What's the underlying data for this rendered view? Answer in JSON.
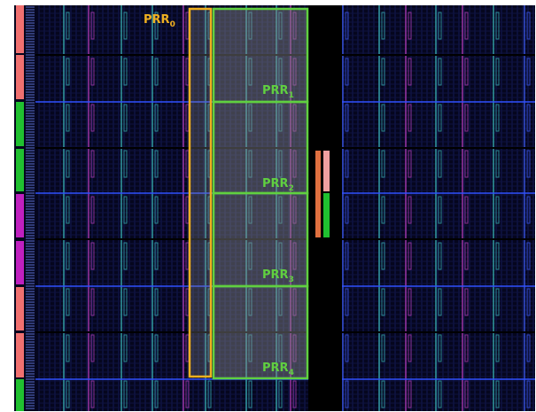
{
  "regions": [
    {
      "name": "PRR",
      "index": "0"
    },
    {
      "name": "PRR",
      "index": "1"
    },
    {
      "name": "PRR",
      "index": "2"
    },
    {
      "name": "PRR",
      "index": "3"
    },
    {
      "name": "PRR",
      "index": "4"
    }
  ]
}
